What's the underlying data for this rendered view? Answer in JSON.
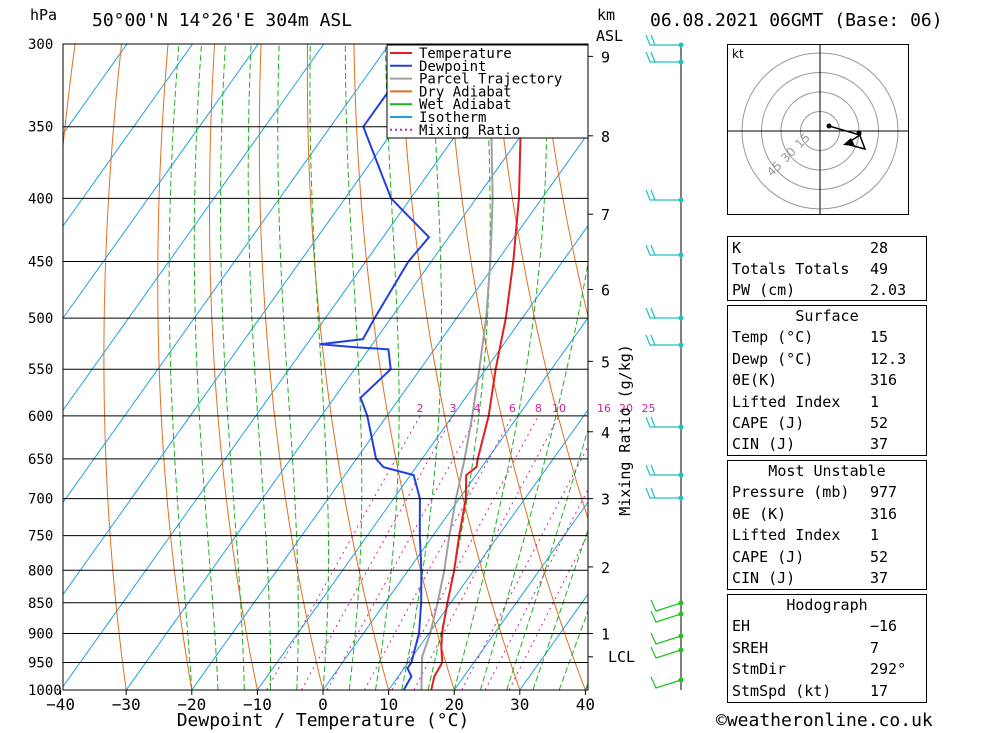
{
  "header": {
    "units_left": "hPa",
    "location": "50°00'N  14°26'E  304m  ASL",
    "units_km": "km",
    "units_asl": "ASL",
    "datetime": "06.08.2021  06GMT  (Base: 06)"
  },
  "chart_data": {
    "type": "line",
    "xlabel": "Dewpoint / Temperature (°C)",
    "ylabel_right": "Mixing Ratio (g/kg)",
    "x_ticks": [
      -40,
      -30,
      -20,
      -10,
      0,
      10,
      20,
      30,
      40
    ],
    "x_tick_labels": [
      "−40",
      "−30",
      "−20",
      "−10",
      "0",
      "10",
      "20",
      "30",
      "40"
    ],
    "pressure_levels": [
      300,
      350,
      400,
      450,
      500,
      550,
      600,
      650,
      700,
      750,
      800,
      850,
      900,
      950,
      1000
    ],
    "height_ticks_km": [
      {
        "km": 1,
        "p": 900
      },
      {
        "km": 2,
        "p": 795
      },
      {
        "km": 3,
        "p": 700
      },
      {
        "km": 4,
        "p": 618
      },
      {
        "km": 5,
        "p": 542
      },
      {
        "km": 6,
        "p": 474
      },
      {
        "km": 7,
        "p": 412
      },
      {
        "km": 8,
        "p": 356
      },
      {
        "km": 9,
        "p": 307
      }
    ],
    "lcl": {
      "label": "LCL",
      "p": 940
    },
    "mixing_ratio_labels": [
      "2",
      "3",
      "4",
      "6",
      "8",
      "10",
      "16",
      "20",
      "25"
    ],
    "mixing_ratio_values": [
      2,
      3,
      4,
      6,
      8,
      10,
      16,
      20,
      25
    ],
    "legend": [
      {
        "name": "Temperature",
        "color": "#e02020",
        "style": "solid"
      },
      {
        "name": "Dewpoint",
        "color": "#2040e0",
        "style": "solid"
      },
      {
        "name": "Parcel Trajectory",
        "color": "#a0a0a0",
        "style": "solid"
      },
      {
        "name": "Dry Adiabat",
        "color": "#e07020",
        "style": "solid"
      },
      {
        "name": "Wet Adiabat",
        "color": "#20b020",
        "style": "solid"
      },
      {
        "name": "Isotherm",
        "color": "#20a0e0",
        "style": "solid"
      },
      {
        "name": "Mixing Ratio",
        "color": "#d020a0",
        "style": "dotted"
      }
    ],
    "series": [
      {
        "name": "Temperature",
        "points": [
          [
            1000,
            16.5
          ],
          [
            975,
            15.5
          ],
          [
            950,
            15.2
          ],
          [
            925,
            13.5
          ],
          [
            900,
            12.0
          ],
          [
            850,
            9.5
          ],
          [
            800,
            7.0
          ],
          [
            750,
            4.0
          ],
          [
            700,
            1.0
          ],
          [
            670,
            -1.5
          ],
          [
            660,
            -0.8
          ],
          [
            650,
            -1.5
          ],
          [
            600,
            -4.5
          ],
          [
            550,
            -8.5
          ],
          [
            500,
            -12.5
          ],
          [
            450,
            -17.5
          ],
          [
            400,
            -23.5
          ],
          [
            350,
            -31.0
          ],
          [
            300,
            -38.5
          ]
        ]
      },
      {
        "name": "Dewpoint",
        "points": [
          [
            1000,
            12.3
          ],
          [
            975,
            12.0
          ],
          [
            960,
            10.5
          ],
          [
            950,
            10.5
          ],
          [
            925,
            9.5
          ],
          [
            900,
            8.5
          ],
          [
            850,
            5.5
          ],
          [
            800,
            2.0
          ],
          [
            750,
            -2.0
          ],
          [
            700,
            -6.0
          ],
          [
            670,
            -9.5
          ],
          [
            660,
            -15.0
          ],
          [
            650,
            -17.0
          ],
          [
            600,
            -23.0
          ],
          [
            580,
            -26.0
          ],
          [
            550,
            -24.5
          ],
          [
            530,
            -27.0
          ],
          [
            528,
            -32.0
          ],
          [
            525,
            -38.0
          ],
          [
            520,
            -32.0
          ],
          [
            500,
            -32.5
          ],
          [
            450,
            -33.5
          ],
          [
            430,
            -33.0
          ],
          [
            400,
            -43.0
          ],
          [
            350,
            -55.0
          ],
          [
            310,
            -55.0
          ],
          [
            300,
            -56.0
          ]
        ]
      },
      {
        "name": "Parcel Trajectory",
        "points": [
          [
            1000,
            15.0
          ],
          [
            940,
            11.5
          ],
          [
            900,
            10.2
          ],
          [
            850,
            8.0
          ],
          [
            800,
            5.5
          ],
          [
            750,
            2.5
          ],
          [
            700,
            -0.5
          ],
          [
            650,
            -3.5
          ],
          [
            600,
            -7.0
          ],
          [
            550,
            -11.0
          ],
          [
            500,
            -15.5
          ],
          [
            450,
            -21.0
          ],
          [
            400,
            -27.5
          ],
          [
            350,
            -35.5
          ],
          [
            300,
            -44.0
          ]
        ]
      }
    ]
  },
  "hodograph": {
    "unit": "kt",
    "ring_labels": [
      "15",
      "30",
      "45"
    ]
  },
  "indices": [
    {
      "label": "K",
      "value": "28"
    },
    {
      "label": "Totals Totals",
      "value": "49"
    },
    {
      "label": "PW (cm)",
      "value": "2.03"
    }
  ],
  "surface": {
    "title": "Surface",
    "rows": [
      {
        "label": "Temp (°C)",
        "value": "15"
      },
      {
        "label": "Dewp (°C)",
        "value": "12.3"
      },
      {
        "label": "θE(K)",
        "value": "316"
      },
      {
        "label": "Lifted Index",
        "value": "1"
      },
      {
        "label": "CAPE (J)",
        "value": "52"
      },
      {
        "label": "CIN (J)",
        "value": "37"
      }
    ]
  },
  "most_unstable": {
    "title": "Most Unstable",
    "rows": [
      {
        "label": "Pressure (mb)",
        "value": "977"
      },
      {
        "label": "θE (K)",
        "value": "316"
      },
      {
        "label": "Lifted Index",
        "value": "1"
      },
      {
        "label": "CAPE (J)",
        "value": "52"
      },
      {
        "label": "CIN (J)",
        "value": "37"
      }
    ]
  },
  "hodograph_table": {
    "title": "Hodograph",
    "rows": [
      {
        "label": "EH",
        "value": "−16"
      },
      {
        "label": "SREH",
        "value": "7"
      },
      {
        "label": "StmDir",
        "value": "292°"
      },
      {
        "label": "StmSpd (kt)",
        "value": "17"
      }
    ]
  },
  "footer": {
    "copyright": "©weatheronline.co.uk"
  },
  "colors": {
    "temperature": "#e02020",
    "dewpoint": "#2040e0",
    "parcel": "#a0a0a0",
    "dry_adiabat": "#e07020",
    "wet_adiabat": "#20b020",
    "isotherm": "#20a0e0",
    "mixing_ratio": "#d020a0",
    "wind_barb": "#20c0c0"
  }
}
